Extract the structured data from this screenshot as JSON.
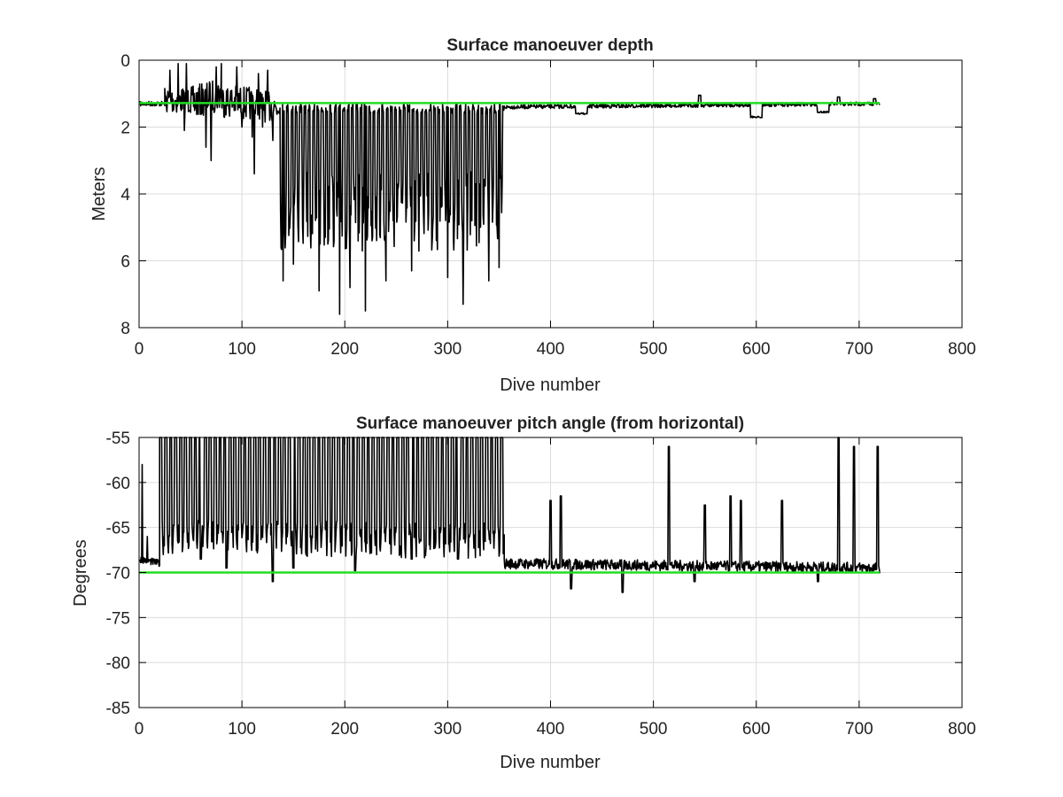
{
  "figure": {
    "background": "#ffffff"
  },
  "chart_data": [
    {
      "type": "line",
      "title": "Surface manoeuver depth",
      "xlabel": "Dive number",
      "ylabel": "Meters",
      "xlim": [
        0,
        800
      ],
      "ylim": [
        0,
        8
      ],
      "y_reversed": true,
      "grid": true,
      "xticks": [
        "0",
        "100",
        "200",
        "300",
        "400",
        "500",
        "600",
        "700",
        "800"
      ],
      "yticks": [
        "0",
        "2",
        "4",
        "6",
        "8"
      ],
      "series": [
        {
          "color": "#000000",
          "segments": [
            {
              "x": [
                1,
                25
              ],
              "y": [
                1.3,
                1.3
              ],
              "amp": 0.15
            },
            {
              "x": [
                25,
                50
              ],
              "y": [
                1.2,
                1.2
              ],
              "amp": 0.8,
              "spikes": [
                [
                  20,
                  0.2
                ],
                [
                  30,
                  0.3
                ],
                [
                  38,
                  0.1
                ],
                [
                  44,
                  2.1
                ],
                [
                  46,
                  0.1
                ]
              ]
            },
            {
              "x": [
                50,
                80
              ],
              "y": [
                1.3,
                1.0
              ],
              "amp": 1.0,
              "spikes": [
                [
                  65,
                  2.6
                ],
                [
                  70,
                  3.0
                ],
                [
                  75,
                  0.2
                ],
                [
                  80,
                  0.1
                ]
              ]
            },
            {
              "x": [
                80,
                135
              ],
              "y": [
                1.2,
                1.4
              ],
              "amp": 1.0,
              "spikes": [
                [
                  95,
                  0.2
                ],
                [
                  100,
                  2.0
                ],
                [
                  110,
                  2.3
                ],
                [
                  112,
                  3.4
                ],
                [
                  116,
                  0.4
                ],
                [
                  120,
                  2.0
                ],
                [
                  125,
                  0.3
                ],
                [
                  130,
                  2.4
                ]
              ]
            },
            {
              "x": [
                135,
                355
              ],
              "y": [
                3.8,
                3.8
              ],
              "amp": 2.4,
              "spikes": [
                [
                  140,
                  6.6
                ],
                [
                  150,
                  6.1
                ],
                [
                  175,
                  6.9
                ],
                [
                  195,
                  7.6
                ],
                [
                  205,
                  6.8
                ],
                [
                  220,
                  7.5
                ],
                [
                  240,
                  6.6
                ],
                [
                  265,
                  6.3
                ],
                [
                  300,
                  6.5
                ],
                [
                  315,
                  7.3
                ],
                [
                  340,
                  6.6
                ],
                [
                  350,
                  6.2
                ]
              ],
              "high": 1.3
            },
            {
              "x": [
                355,
                720
              ],
              "y": [
                1.4,
                1.3
              ],
              "amp": 0.12,
              "dips": [
                [
                  430,
                  1.6
                ],
                [
                  600,
                  1.7
                ],
                [
                  665,
                  1.55
                ]
              ],
              "bumps": [
                [
                  545,
                  1.05
                ],
                [
                  680,
                  1.1
                ],
                [
                  715,
                  1.15
                ]
              ]
            }
          ]
        },
        {
          "color": "#22dd22",
          "reference": true,
          "x": [
            0,
            720
          ],
          "y": [
            1.28,
            1.28
          ]
        }
      ]
    },
    {
      "type": "line",
      "title": "Surface manoeuver pitch angle (from horizontal)",
      "xlabel": "Dive number",
      "ylabel": "Degrees",
      "xlim": [
        0,
        800
      ],
      "ylim": [
        -85,
        -55
      ],
      "grid": true,
      "xticks": [
        "0",
        "100",
        "200",
        "300",
        "400",
        "500",
        "600",
        "700",
        "800"
      ],
      "yticks": [
        "-55",
        "-60",
        "-65",
        "-70",
        "-75",
        "-80",
        "-85"
      ],
      "series": [
        {
          "color": "#000000",
          "segments": [
            {
              "x": [
                1,
                20
              ],
              "y": [
                -68.5,
                -69.0
              ],
              "amp": 0.8,
              "spikes": [
                [
                  3,
                  -58
                ],
                [
                  8,
                  -66
                ]
              ]
            },
            {
              "x": [
                20,
                355
              ],
              "y": [
                -66.0,
                -66.5
              ],
              "amp": 2.5,
              "tops": -55,
              "lows": [
                [
                  60,
                  -68.5
                ],
                [
                  85,
                  -69.5
                ],
                [
                  130,
                  -71.0
                ],
                [
                  150,
                  -69.5
                ],
                [
                  210,
                  -69.8
                ],
                [
                  265,
                  -68.5
                ],
                [
                  310,
                  -68.5
                ]
              ]
            },
            {
              "x": [
                355,
                720
              ],
              "y": [
                -69.0,
                -69.5
              ],
              "amp": 1.2,
              "peaks": [
                [
                  400,
                  -62.0
                ],
                [
                  410,
                  -61.5
                ],
                [
                  515,
                  -56.0
                ],
                [
                  550,
                  -62.5
                ],
                [
                  575,
                  -61.5
                ],
                [
                  585,
                  -62.0
                ],
                [
                  625,
                  -62.0
                ],
                [
                  680,
                  -55.0
                ],
                [
                  695,
                  -56.0
                ],
                [
                  718,
                  -56.0
                ]
              ],
              "lows": [
                [
                  420,
                  -71.8
                ],
                [
                  470,
                  -72.2
                ],
                [
                  540,
                  -71.0
                ],
                [
                  660,
                  -71.0
                ]
              ]
            }
          ]
        },
        {
          "color": "#22dd22",
          "reference": true,
          "x": [
            0,
            720
          ],
          "y": [
            -70,
            -70
          ]
        }
      ]
    }
  ]
}
